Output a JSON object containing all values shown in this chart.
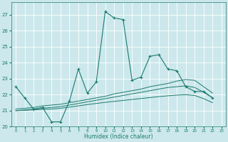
{
  "title": "",
  "xlabel": "Humidex (Indice chaleur)",
  "bg_color": "#cce8ec",
  "grid_color": "#ffffff",
  "line_color": "#1a7a6e",
  "xlim": [
    -0.5,
    23.5
  ],
  "ylim": [
    20,
    27.8
  ],
  "yticks": [
    20,
    21,
    22,
    23,
    24,
    25,
    26,
    27
  ],
  "xticks": [
    0,
    1,
    2,
    3,
    4,
    5,
    6,
    7,
    8,
    9,
    10,
    11,
    12,
    13,
    14,
    15,
    16,
    17,
    18,
    19,
    20,
    21,
    22,
    23
  ],
  "series0_x": [
    0,
    1,
    2,
    3,
    4,
    5,
    6,
    7,
    8,
    9,
    10,
    11,
    12,
    13,
    14,
    15,
    16,
    17,
    18,
    19,
    20,
    21,
    22
  ],
  "series0_y": [
    22.5,
    21.8,
    21.1,
    21.2,
    20.3,
    20.3,
    21.6,
    23.6,
    22.1,
    22.8,
    27.2,
    26.8,
    26.7,
    22.9,
    23.1,
    24.4,
    24.5,
    23.6,
    23.5,
    22.5,
    22.2,
    22.2,
    21.8
  ],
  "series1_x": [
    0,
    1,
    2,
    3,
    4,
    5,
    6,
    7,
    8,
    9,
    10,
    11,
    12,
    13,
    14,
    15,
    16,
    17,
    18,
    19,
    20,
    21,
    22
  ],
  "series1_y": [
    21.1,
    21.15,
    21.2,
    21.3,
    21.35,
    21.4,
    21.5,
    21.6,
    21.7,
    21.8,
    21.9,
    22.05,
    22.15,
    22.25,
    22.35,
    22.5,
    22.6,
    22.7,
    22.85,
    22.95,
    22.9,
    22.5,
    22.1
  ],
  "series2_x": [
    0,
    1,
    2,
    3,
    4,
    5,
    6,
    7,
    8,
    9,
    10,
    11,
    12,
    13,
    14,
    15,
    16,
    17,
    18,
    19,
    20,
    21,
    22
  ],
  "series2_y": [
    21.0,
    21.05,
    21.1,
    21.15,
    21.2,
    21.25,
    21.35,
    21.45,
    21.55,
    21.65,
    21.75,
    21.85,
    21.95,
    22.05,
    22.15,
    22.25,
    22.35,
    22.45,
    22.5,
    22.55,
    22.45,
    22.15,
    21.8
  ],
  "series3_x": [
    0,
    1,
    2,
    3,
    4,
    5,
    6,
    7,
    8,
    9,
    10,
    11,
    12,
    13,
    14,
    15,
    16,
    17,
    18,
    19,
    20,
    21,
    22
  ],
  "series3_y": [
    21.0,
    21.02,
    21.05,
    21.08,
    21.1,
    21.15,
    21.22,
    21.3,
    21.38,
    21.45,
    21.52,
    21.58,
    21.64,
    21.7,
    21.76,
    21.82,
    21.88,
    21.93,
    21.97,
    22.0,
    21.95,
    21.75,
    21.5
  ]
}
